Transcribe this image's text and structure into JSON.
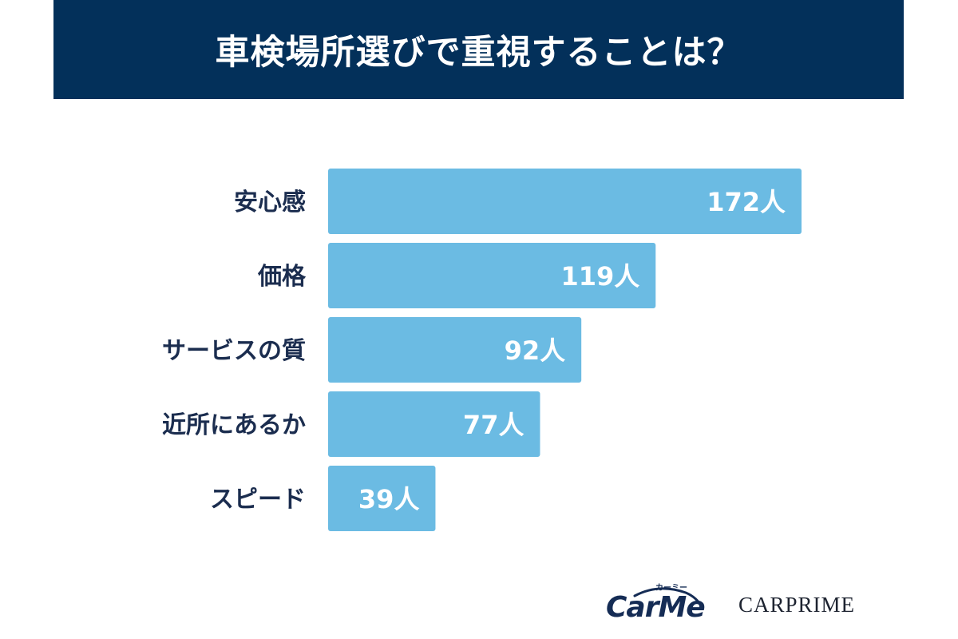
{
  "colors": {
    "header_bg": "#03305a",
    "bar": "#6bbbe3",
    "label_text": "#1b2d4f",
    "value_text": "#ffffff"
  },
  "chart_data": {
    "type": "bar",
    "orientation": "horizontal",
    "title": "車検場所選びで重視することは？",
    "categories": [
      "安心感",
      "価格",
      "サービスの質",
      "近所にあるか",
      "スピード"
    ],
    "values": [
      172,
      119,
      92,
      77,
      39
    ],
    "value_labels": [
      "172人",
      "119人",
      "92人",
      "77人",
      "39人"
    ],
    "grid": false,
    "legend": "none"
  },
  "logos": {
    "carme": "CarMe",
    "carme_kana": "カーミー",
    "carprime": "CARPRIME"
  }
}
